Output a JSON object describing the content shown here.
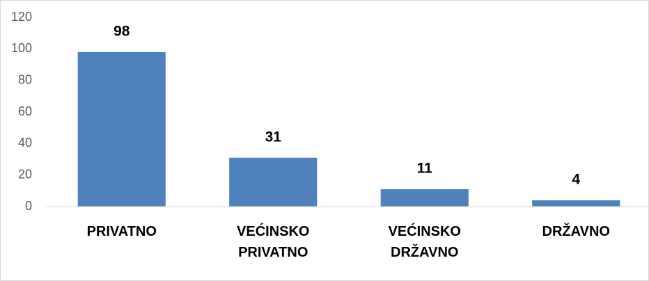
{
  "chart_data": {
    "type": "bar",
    "categories": [
      "PRIVATNO",
      "VEĆINSKO PRIVATNO",
      "VEĆINSKO DRŽAVNO",
      "DRŽAVNO"
    ],
    "values": [
      98,
      31,
      11,
      4
    ],
    "color": "#4f81bd",
    "ylim": [
      0,
      120
    ],
    "yticks": [
      0,
      20,
      40,
      60,
      80,
      100,
      120
    ],
    "grid": false
  }
}
